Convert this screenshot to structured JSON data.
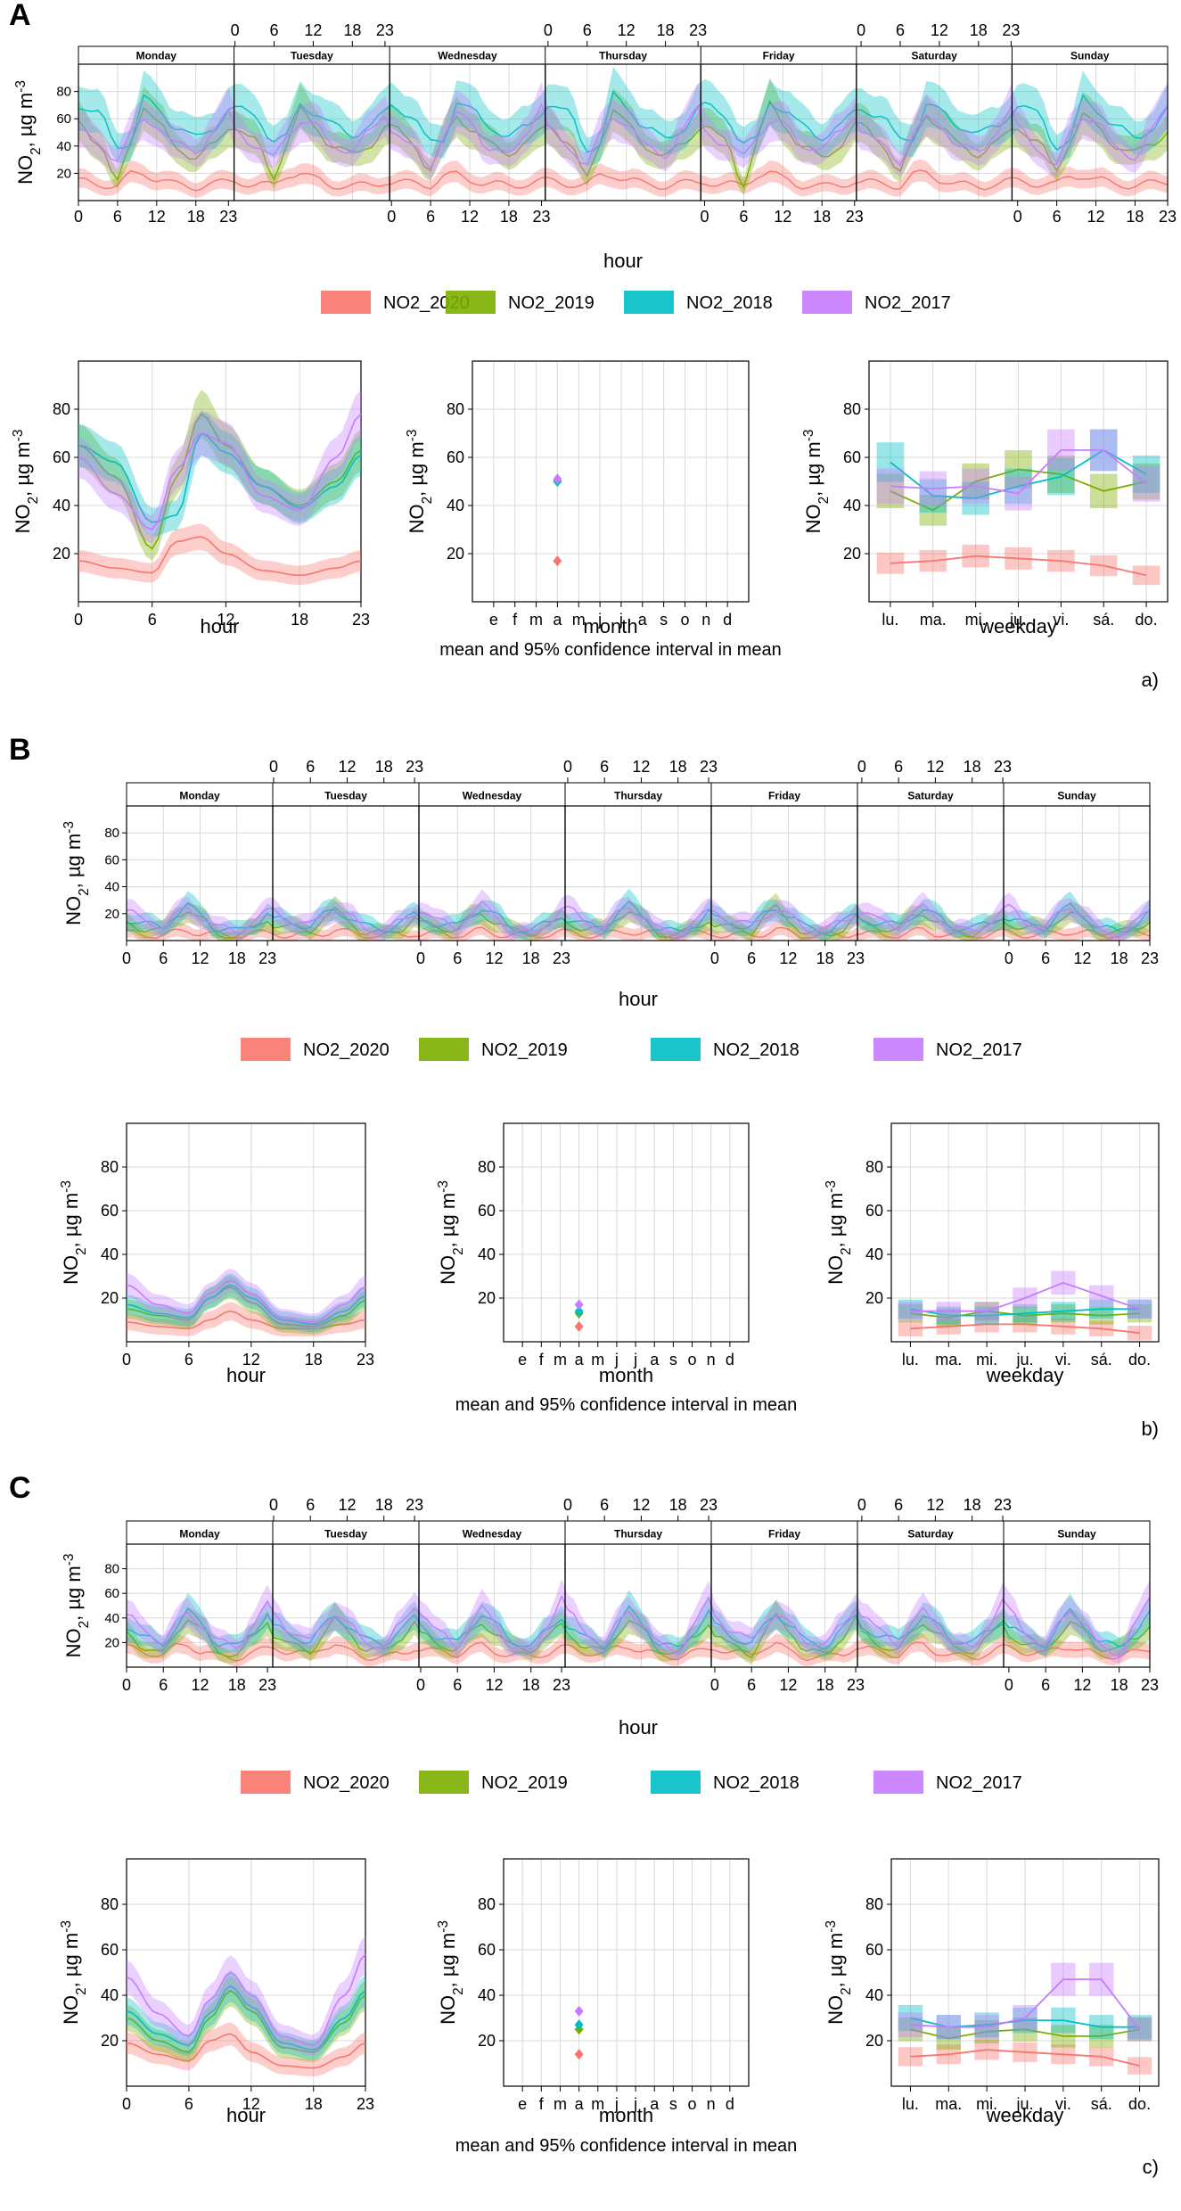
{
  "colors": {
    "NO2_2020": "#f8766d",
    "NO2_2019": "#7cae00",
    "NO2_2018": "#00bfc4",
    "NO2_2017": "#c77cff"
  },
  "legend": [
    "NO2_2020",
    "NO2_2019",
    "NO2_2018",
    "NO2_2017"
  ],
  "axis_labels": {
    "ylabel": "NO2, µg m-3",
    "hour": "hour",
    "month": "month",
    "weekday": "weekday",
    "caption": "mean and 95% confidence interval in mean"
  },
  "week_days": [
    "Monday",
    "Tuesday",
    "Wednesday",
    "Thursday",
    "Friday",
    "Saturday",
    "Sunday"
  ],
  "hour_ticks": [
    "0",
    "6",
    "12",
    "18",
    "23"
  ],
  "month_ticks": [
    "e",
    "f",
    "m",
    "a",
    "m",
    "j",
    "j",
    "a",
    "s",
    "o",
    "n",
    "d"
  ],
  "weekday_ticks": [
    "lu.",
    "ma.",
    "mi.",
    "ju.",
    "vi.",
    "sá.",
    "do."
  ],
  "y_ticks_weekly": [
    "20",
    "40",
    "60",
    "80"
  ],
  "y_ticks_sub": [
    "20",
    "40",
    "60",
    "80"
  ],
  "chart_data": [
    {
      "panel": "A",
      "tag": "a)",
      "weekly": {
        "type": "line",
        "ylim": [
          0,
          100
        ],
        "base": {
          "NO2_2020": 14,
          "NO2_2019": 45,
          "NO2_2018": 58,
          "NO2_2017": 48
        },
        "amp": {
          "NO2_2020": 0.35,
          "NO2_2019": 0.55,
          "NO2_2018": 0.55,
          "NO2_2017": 0.5
        }
      },
      "hour": {
        "type": "line",
        "ylim": [
          0,
          100
        ],
        "x": [
          0,
          3,
          6,
          8,
          10,
          12,
          15,
          18,
          21,
          23
        ],
        "series": [
          {
            "name": "NO2_2020",
            "values": [
              17,
              14,
              12,
              25,
              27,
              20,
              13,
              11,
              14,
              17
            ]
          },
          {
            "name": "NO2_2019",
            "values": [
              65,
              52,
              22,
              52,
              78,
              65,
              48,
              40,
              50,
              63
            ]
          },
          {
            "name": "NO2_2018",
            "values": [
              65,
              58,
              33,
              36,
              70,
              62,
              48,
              39,
              48,
              61
            ]
          },
          {
            "name": "NO2_2017",
            "values": [
              60,
              45,
              30,
              55,
              70,
              66,
              44,
              38,
              60,
              78
            ]
          }
        ]
      },
      "month": {
        "type": "scatter",
        "ylim": [
          0,
          100
        ],
        "month_index": 3,
        "series": [
          {
            "name": "NO2_2020",
            "value": 17
          },
          {
            "name": "NO2_2019",
            "value": 50
          },
          {
            "name": "NO2_2018",
            "value": 50
          },
          {
            "name": "NO2_2017",
            "value": 51
          }
        ]
      },
      "weekday": {
        "type": "line",
        "ylim": [
          0,
          100
        ],
        "series": [
          {
            "name": "NO2_2020",
            "values": [
              16,
              17,
              19,
              18,
              17,
              15,
              11
            ]
          },
          {
            "name": "NO2_2019",
            "values": [
              46,
              38,
              50,
              55,
              53,
              46,
              50
            ]
          },
          {
            "name": "NO2_2018",
            "values": [
              58,
              44,
              43,
              48,
              52,
              63,
              53
            ]
          },
          {
            "name": "NO2_2017",
            "values": [
              48,
              47,
              48,
              45,
              63,
              63,
              49
            ]
          }
        ]
      }
    },
    {
      "panel": "B",
      "tag": "b)",
      "weekly": {
        "type": "line",
        "ylim": [
          0,
          100
        ],
        "base": {
          "NO2_2020": 5,
          "NO2_2019": 12,
          "NO2_2018": 15,
          "NO2_2017": 16
        },
        "amp": {
          "NO2_2020": 0.3,
          "NO2_2019": 0.6,
          "NO2_2018": 0.6,
          "NO2_2017": 0.6
        }
      },
      "hour": {
        "type": "line",
        "ylim": [
          0,
          100
        ],
        "x": [
          0,
          3,
          6,
          8,
          10,
          12,
          15,
          18,
          21,
          23
        ],
        "series": [
          {
            "name": "NO2_2020",
            "values": [
              9,
              7,
              6,
              10,
              14,
              10,
              6,
              6,
              8,
              10
            ]
          },
          {
            "name": "NO2_2019",
            "values": [
              15,
              12,
              10,
              20,
              25,
              18,
              8,
              7,
              12,
              19
            ]
          },
          {
            "name": "NO2_2018",
            "values": [
              17,
              13,
              11,
              20,
              26,
              20,
              10,
              8,
              14,
              21
            ]
          },
          {
            "name": "NO2_2017",
            "values": [
              26,
              17,
              13,
              22,
              28,
              22,
              11,
              9,
              17,
              25
            ]
          }
        ]
      },
      "month": {
        "type": "scatter",
        "ylim": [
          0,
          100
        ],
        "month_index": 3,
        "series": [
          {
            "name": "NO2_2020",
            "value": 7
          },
          {
            "name": "NO2_2019",
            "value": 13
          },
          {
            "name": "NO2_2018",
            "value": 14
          },
          {
            "name": "NO2_2017",
            "value": 17
          }
        ]
      },
      "weekday": {
        "type": "line",
        "ylim": [
          0,
          100
        ],
        "series": [
          {
            "name": "NO2_2020",
            "values": [
              6,
              7,
              8,
              8,
              7,
              6,
              4
            ]
          },
          {
            "name": "NO2_2019",
            "values": [
              13,
              11,
              14,
              12,
              13,
              12,
              13
            ]
          },
          {
            "name": "NO2_2018",
            "values": [
              15,
              12,
              12,
              13,
              14,
              15,
              15
            ]
          },
          {
            "name": "NO2_2017",
            "values": [
              14,
              14,
              14,
              20,
              27,
              21,
              15
            ]
          }
        ]
      }
    },
    {
      "panel": "C",
      "tag": "c)",
      "weekly": {
        "type": "line",
        "ylim": [
          0,
          100
        ],
        "base": {
          "NO2_2020": 13,
          "NO2_2019": 24,
          "NO2_2018": 30,
          "NO2_2017": 33
        },
        "amp": {
          "NO2_2020": 0.4,
          "NO2_2019": 0.6,
          "NO2_2018": 0.6,
          "NO2_2017": 0.6
        }
      },
      "hour": {
        "type": "line",
        "ylim": [
          0,
          100
        ],
        "x": [
          0,
          3,
          6,
          8,
          10,
          12,
          15,
          18,
          21,
          23
        ],
        "series": [
          {
            "name": "NO2_2020",
            "values": [
              19,
              14,
              11,
              20,
              23,
              15,
              9,
              8,
              13,
              19
            ]
          },
          {
            "name": "NO2_2019",
            "values": [
              30,
              20,
              15,
              30,
              42,
              33,
              17,
              15,
              28,
              40
            ]
          },
          {
            "name": "NO2_2018",
            "values": [
              33,
              23,
              18,
              32,
              44,
              35,
              19,
              16,
              30,
              42
            ]
          },
          {
            "name": "NO2_2017",
            "values": [
              48,
              32,
              22,
              38,
              50,
              40,
              22,
              18,
              40,
              58
            ]
          }
        ]
      },
      "month": {
        "type": "scatter",
        "ylim": [
          0,
          100
        ],
        "month_index": 3,
        "series": [
          {
            "name": "NO2_2020",
            "value": 14
          },
          {
            "name": "NO2_2019",
            "value": 25
          },
          {
            "name": "NO2_2018",
            "value": 27
          },
          {
            "name": "NO2_2017",
            "value": 33
          }
        ]
      },
      "weekday": {
        "type": "line",
        "ylim": [
          0,
          100
        ],
        "series": [
          {
            "name": "NO2_2020",
            "values": [
              13,
              14,
              16,
              15,
              14,
              13,
              9
            ]
          },
          {
            "name": "NO2_2019",
            "values": [
              25,
              21,
              24,
              25,
              22,
              22,
              25
            ]
          },
          {
            "name": "NO2_2018",
            "values": [
              30,
              26,
              27,
              29,
              29,
              26,
              26
            ]
          },
          {
            "name": "NO2_2017",
            "values": [
              27,
              26,
              26,
              30,
              47,
              47,
              25
            ]
          }
        ]
      }
    }
  ]
}
